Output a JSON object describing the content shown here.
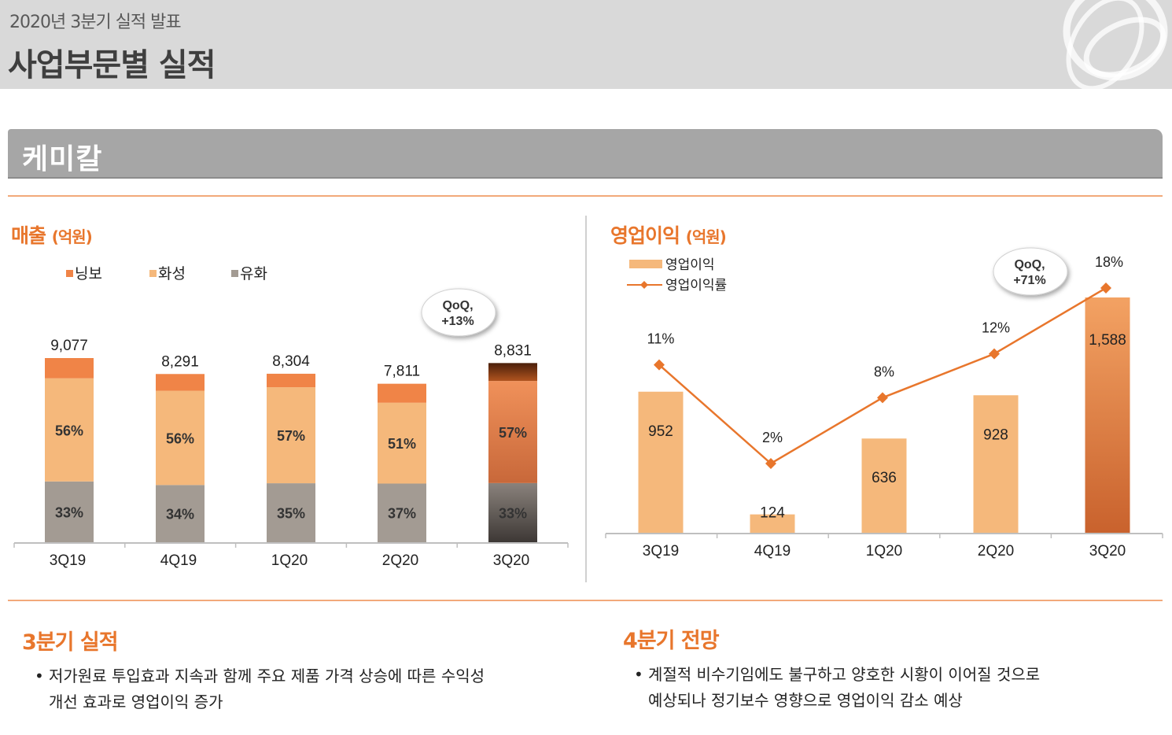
{
  "header": {
    "subtitle": "2020년 3분기 실적 발표",
    "title": "사업부문별 실적"
  },
  "section": {
    "title": "케미칼"
  },
  "left_panel": {
    "title": "매출",
    "unit": "(억원)"
  },
  "right_panel": {
    "title": "영업이익",
    "unit": "(억원)"
  },
  "chart_data": [
    {
      "type": "bar",
      "stacked": true,
      "title": "매출 (억원)",
      "categories": [
        "3Q19",
        "4Q19",
        "1Q20",
        "2Q20",
        "3Q20"
      ],
      "legend": [
        "닝보",
        "화성",
        "유화"
      ],
      "totals": [
        9077,
        8291,
        8304,
        7811,
        8831
      ],
      "total_labels": [
        "9,077",
        "8,291",
        "8,304",
        "7,811",
        "8,831"
      ],
      "series": [
        {
          "name": "유화",
          "values": [
            2995,
            2819,
            2906,
            2890,
            2914
          ],
          "labels": [
            "33%",
            "34%",
            "35%",
            "37%",
            "33%"
          ],
          "color": "#a39b93"
        },
        {
          "name": "화성",
          "values": [
            5083,
            4643,
            4733,
            3984,
            5034
          ],
          "labels": [
            "56%",
            "56%",
            "57%",
            "51%",
            "57%"
          ],
          "color": "#f5b87b"
        },
        {
          "name": "닝보",
          "values": [
            999,
            829,
            665,
            937,
            883
          ],
          "labels": [
            "",
            "",
            "",
            "",
            ""
          ],
          "color": "#f08447"
        }
      ],
      "annotation": {
        "line1": "QoQ,",
        "line2": "+13%"
      },
      "highlight_index": 4
    },
    {
      "type": "bar+line",
      "title": "영업이익 (억원)",
      "categories": [
        "3Q19",
        "4Q19",
        "1Q20",
        "2Q20",
        "3Q20"
      ],
      "legend": [
        "영업이익",
        "영업이익률"
      ],
      "series": [
        {
          "name": "영업이익",
          "values": [
            952,
            124,
            636,
            928,
            1588
          ],
          "labels": [
            "952",
            "124",
            "636",
            "928",
            "1,588"
          ],
          "color": "#f5b87b"
        },
        {
          "name": "영업이익률",
          "values": [
            11,
            2,
            8,
            12,
            18
          ],
          "labels": [
            "11%",
            "2%",
            "8%",
            "12%",
            "18%"
          ],
          "color": "#e8762c"
        }
      ],
      "annotation": {
        "line1": "QoQ,",
        "line2": "+71%"
      },
      "highlight_index": 4
    }
  ],
  "summary": {
    "left": {
      "title": "3분기 실적",
      "line1": "저가원료 투입효과 지속과 함께 주요 제품 가격 상승에 따른 수익성",
      "line2": "개선 효과로 영업이익 증가"
    },
    "right": {
      "title": "4분기 전망",
      "line1": "계절적 비수기임에도 불구하고 양호한 시황이 이어질 것으로",
      "line2": "예상되나 정기보수 영향으로 영업이익 감소 예상"
    },
    "bullet": "•"
  }
}
